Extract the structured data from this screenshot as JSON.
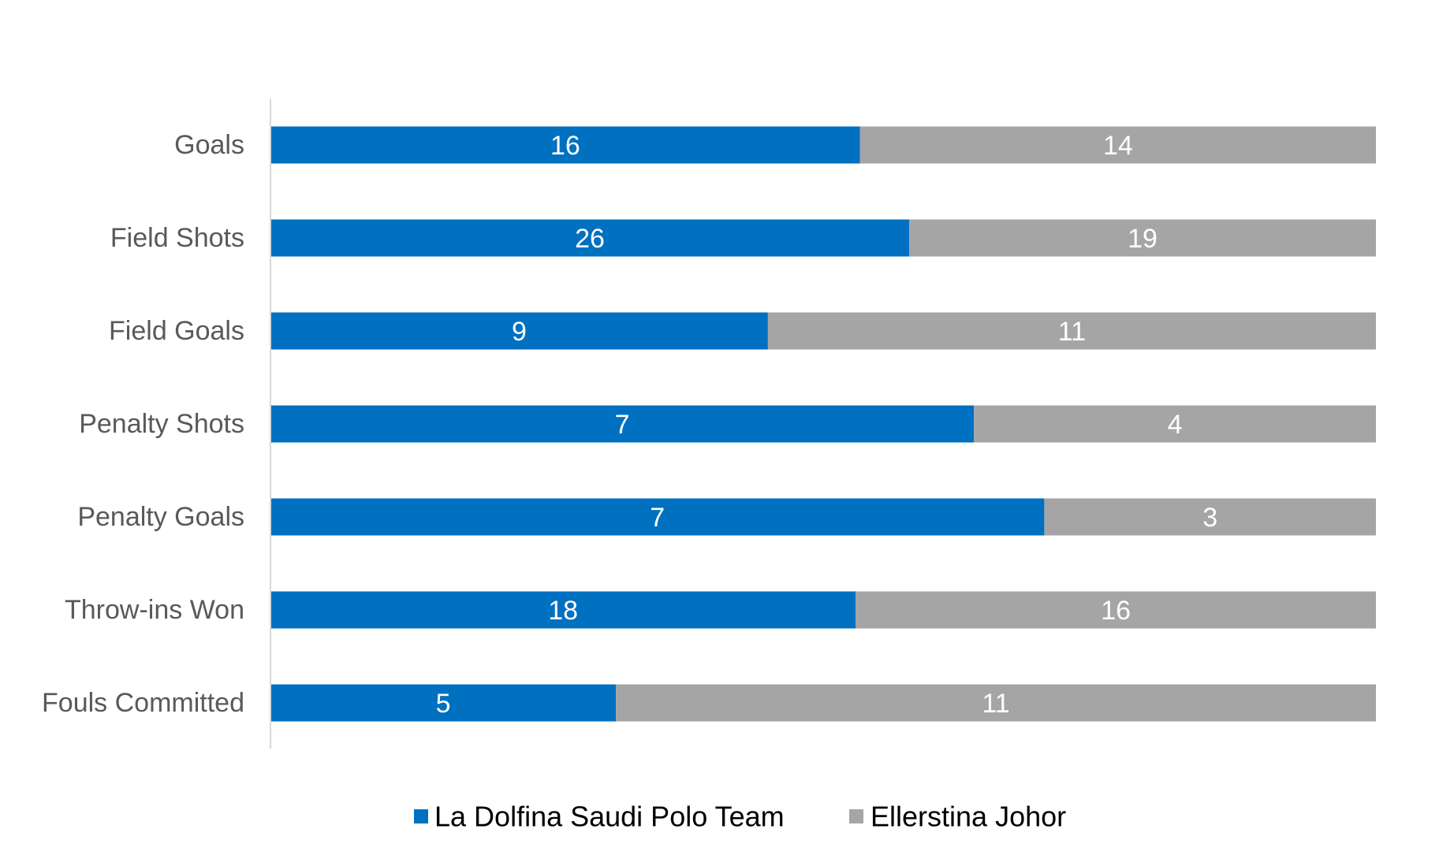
{
  "chart_data": {
    "type": "bar",
    "orientation": "horizontal",
    "stacking": "percent",
    "categories": [
      "Goals",
      "Field Shots",
      "Field Goals",
      "Penalty Shots",
      "Penalty Goals",
      "Throw-ins Won",
      "Fouls Committed"
    ],
    "series": [
      {
        "name": "La Dolfina Saudi Polo Team",
        "color": "#0070C0",
        "values": [
          16,
          26,
          9,
          7,
          7,
          18,
          5
        ]
      },
      {
        "name": "Ellerstina Johor",
        "color": "#A5A5A5",
        "values": [
          14,
          19,
          11,
          4,
          3,
          16,
          11
        ]
      }
    ],
    "title": "",
    "xlabel": "",
    "ylabel": "",
    "grid": false,
    "legend_position": "bottom"
  }
}
